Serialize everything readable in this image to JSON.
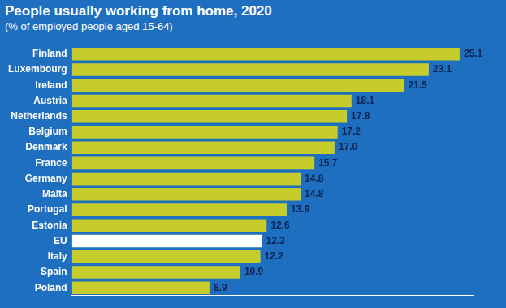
{
  "chart_data": {
    "type": "bar",
    "title": "People usually working from home, 2020",
    "subtitle": "(% of employed people aged 15-64)",
    "orientation": "horizontal",
    "categories": [
      "Finland",
      "Luxembourg",
      "Ireland",
      "Austria",
      "Netherlands",
      "Belgium",
      "Denmark",
      "France",
      "Germany",
      "Malta",
      "Portugal",
      "Estonia",
      "EU",
      "Italy",
      "Spain",
      "Poland"
    ],
    "values": [
      25.1,
      23.1,
      21.5,
      18.1,
      17.8,
      17.2,
      17.0,
      15.7,
      14.8,
      14.8,
      13.9,
      12.6,
      12.3,
      12.2,
      10.9,
      8.9
    ],
    "value_labels": [
      "25.1",
      "23.1",
      "21.5",
      "18.1",
      "17.8",
      "17.2",
      "17.0",
      "15.7",
      "14.8",
      "14.8",
      "13.9",
      "12.6",
      "12.3",
      "12.2",
      "10.9",
      "8.9"
    ],
    "colors": [
      "#c5cc2c",
      "#c5cc2c",
      "#c5cc2c",
      "#c5cc2c",
      "#c5cc2c",
      "#c5cc2c",
      "#c5cc2c",
      "#c5cc2c",
      "#c5cc2c",
      "#c5cc2c",
      "#c5cc2c",
      "#c5cc2c",
      "#ffffff",
      "#c5cc2c",
      "#c5cc2c",
      "#c5cc2c"
    ],
    "xlim": [
      0,
      26
    ],
    "xticks": [],
    "data_labels": true,
    "tick_labels": "y",
    "grid": false
  }
}
